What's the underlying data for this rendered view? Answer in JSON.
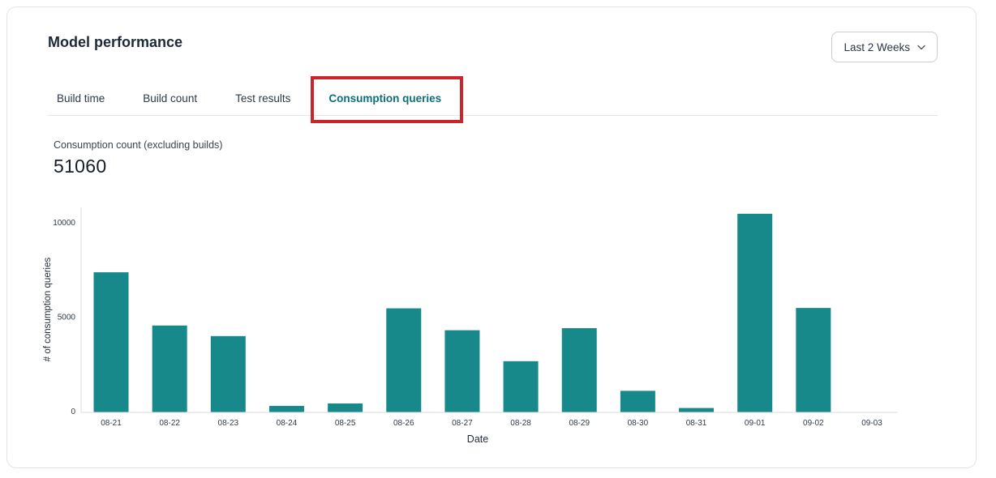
{
  "header": {
    "title": "Model performance"
  },
  "time_range": {
    "label": "Last 2 Weeks"
  },
  "tabs": [
    {
      "label": "Build time",
      "active": false
    },
    {
      "label": "Build count",
      "active": false
    },
    {
      "label": "Test results",
      "active": false
    },
    {
      "label": "Consumption queries",
      "active": true,
      "annotated": true
    }
  ],
  "annotation": {
    "type": "highlight-box",
    "color": "#c9252b",
    "target": "Consumption queries tab"
  },
  "metric": {
    "label": "Consumption count (excluding builds)",
    "value": "51060"
  },
  "chart_data": {
    "type": "bar",
    "title": "",
    "xlabel": "Date",
    "ylabel": "# of consumption queries",
    "categories": [
      "08-21",
      "08-22",
      "08-23",
      "08-24",
      "08-25",
      "08-26",
      "08-27",
      "08-28",
      "08-29",
      "08-30",
      "08-31",
      "09-01",
      "09-02",
      "09-03"
    ],
    "values": [
      7400,
      4580,
      4020,
      320,
      450,
      5490,
      4330,
      2690,
      4440,
      1120,
      210,
      10500,
      5510,
      0
    ],
    "yticks": [
      0,
      5000,
      10000
    ],
    "ylim": [
      0,
      10900
    ],
    "grid": false,
    "legend": "none",
    "bar_color": "#17898a",
    "axis_color": "#d8dbdf",
    "tick_label_color": "#2f3a46",
    "axis_title_color": "#222d39"
  },
  "colors": {
    "accent_teal": "#0d6e78",
    "annotation_red": "#c9252b",
    "card_border": "#e2e4e9"
  }
}
